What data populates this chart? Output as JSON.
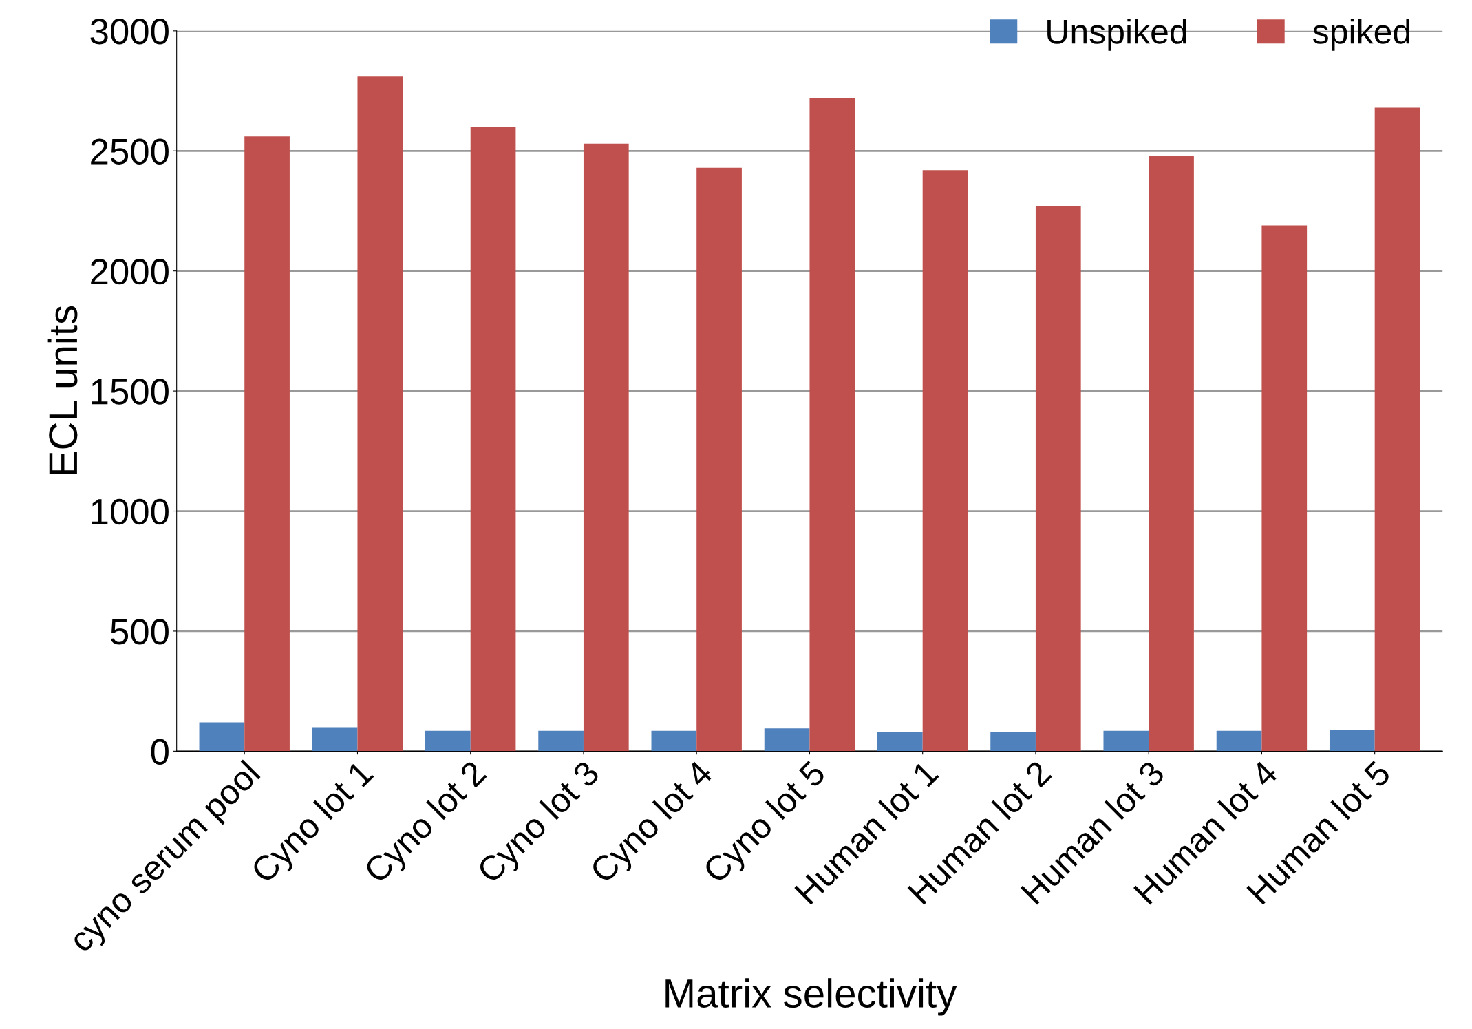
{
  "chart_data": {
    "type": "bar",
    "xlabel": "Matrix selectivity",
    "ylabel": "ECL units",
    "categories": [
      "cyno serum pool",
      "Cyno lot 1",
      "Cyno lot 2",
      "Cyno lot 3",
      "Cyno lot 4",
      "Cyno lot 5",
      "Human lot 1",
      "Human lot 2",
      "Human lot 3",
      "Human lot 4",
      "Human lot 5"
    ],
    "series": [
      {
        "name": "Unspiked",
        "color": "#4f81bd",
        "values": [
          120,
          100,
          85,
          85,
          85,
          95,
          80,
          80,
          85,
          85,
          90
        ]
      },
      {
        "name": "spiked",
        "color": "#c0504d",
        "values": [
          2560,
          2810,
          2600,
          2530,
          2430,
          2720,
          2420,
          2270,
          2480,
          2190,
          2680
        ]
      }
    ],
    "ylim": [
      0,
      3000
    ],
    "yticks": [
      0,
      500,
      1000,
      1500,
      2000,
      2500,
      3000
    ],
    "grid": "y",
    "legend": "top right"
  }
}
